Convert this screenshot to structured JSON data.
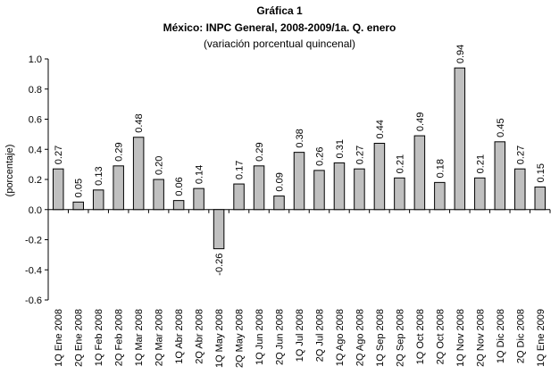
{
  "chart_data": {
    "type": "bar",
    "title": "Gráfica 1",
    "subtitle": "México: INPC General, 2008-2009/1a. Q. enero",
    "note": "(variación porcentual quincenal)",
    "ylabel": "(porcentaje)",
    "xlabel": "",
    "ylim": [
      -0.6,
      1.0
    ],
    "yticks": [
      1.0,
      0.8,
      0.6,
      0.4,
      0.2,
      0.0,
      -0.2,
      -0.4,
      -0.6
    ],
    "ytick_labels": [
      "1.0",
      "0.8",
      "0.6",
      "0.4",
      "0.2",
      "0.0",
      "-0.2",
      "-0.4",
      "-0.6"
    ],
    "grid": false,
    "legend": "none",
    "bar_color": "#c0c0c0",
    "bar_edge_color": "#000000",
    "categories": [
      "1Q Ene 2008",
      "2Q Ene 2008",
      "1Q Feb 2008",
      "2Q Feb 2008",
      "1Q Mar 2008",
      "2Q Mar 2008",
      "1Q Abr 2008",
      "2Q Abr 2008",
      "1Q May 2008",
      "2Q May 2008",
      "1Q Jun 2008",
      "2Q Jun 2008",
      "1Q Jul 2008",
      "2Q Jul 2008",
      "1Q Ago 2008",
      "2Q Ago 2008",
      "1Q Sep 2008",
      "2Q Sep 2008",
      "1Q Oct 2008",
      "2Q Oct 2008",
      "1Q Nov 2008",
      "2Q Nov 2008",
      "1Q Dic 2008",
      "2Q Dic 2008",
      "1Q Ene 2009"
    ],
    "values": [
      0.27,
      0.05,
      0.13,
      0.29,
      0.48,
      0.2,
      0.06,
      0.14,
      -0.26,
      0.17,
      0.29,
      0.09,
      0.38,
      0.26,
      0.31,
      0.27,
      0.44,
      0.21,
      0.49,
      0.18,
      0.94,
      0.21,
      0.45,
      0.27,
      0.15
    ],
    "value_labels": [
      "0.27",
      "0.05",
      "0.13",
      "0.29",
      "0.48",
      "0.20",
      "0.06",
      "0.14",
      "-0.26",
      "0.17",
      "0.29",
      "0.09",
      "0.38",
      "0.26",
      "0.31",
      "0.27",
      "0.44",
      "0.21",
      "0.49",
      "0.18",
      "0.94",
      "0.21",
      "0.45",
      "0.27",
      "0.15"
    ]
  }
}
